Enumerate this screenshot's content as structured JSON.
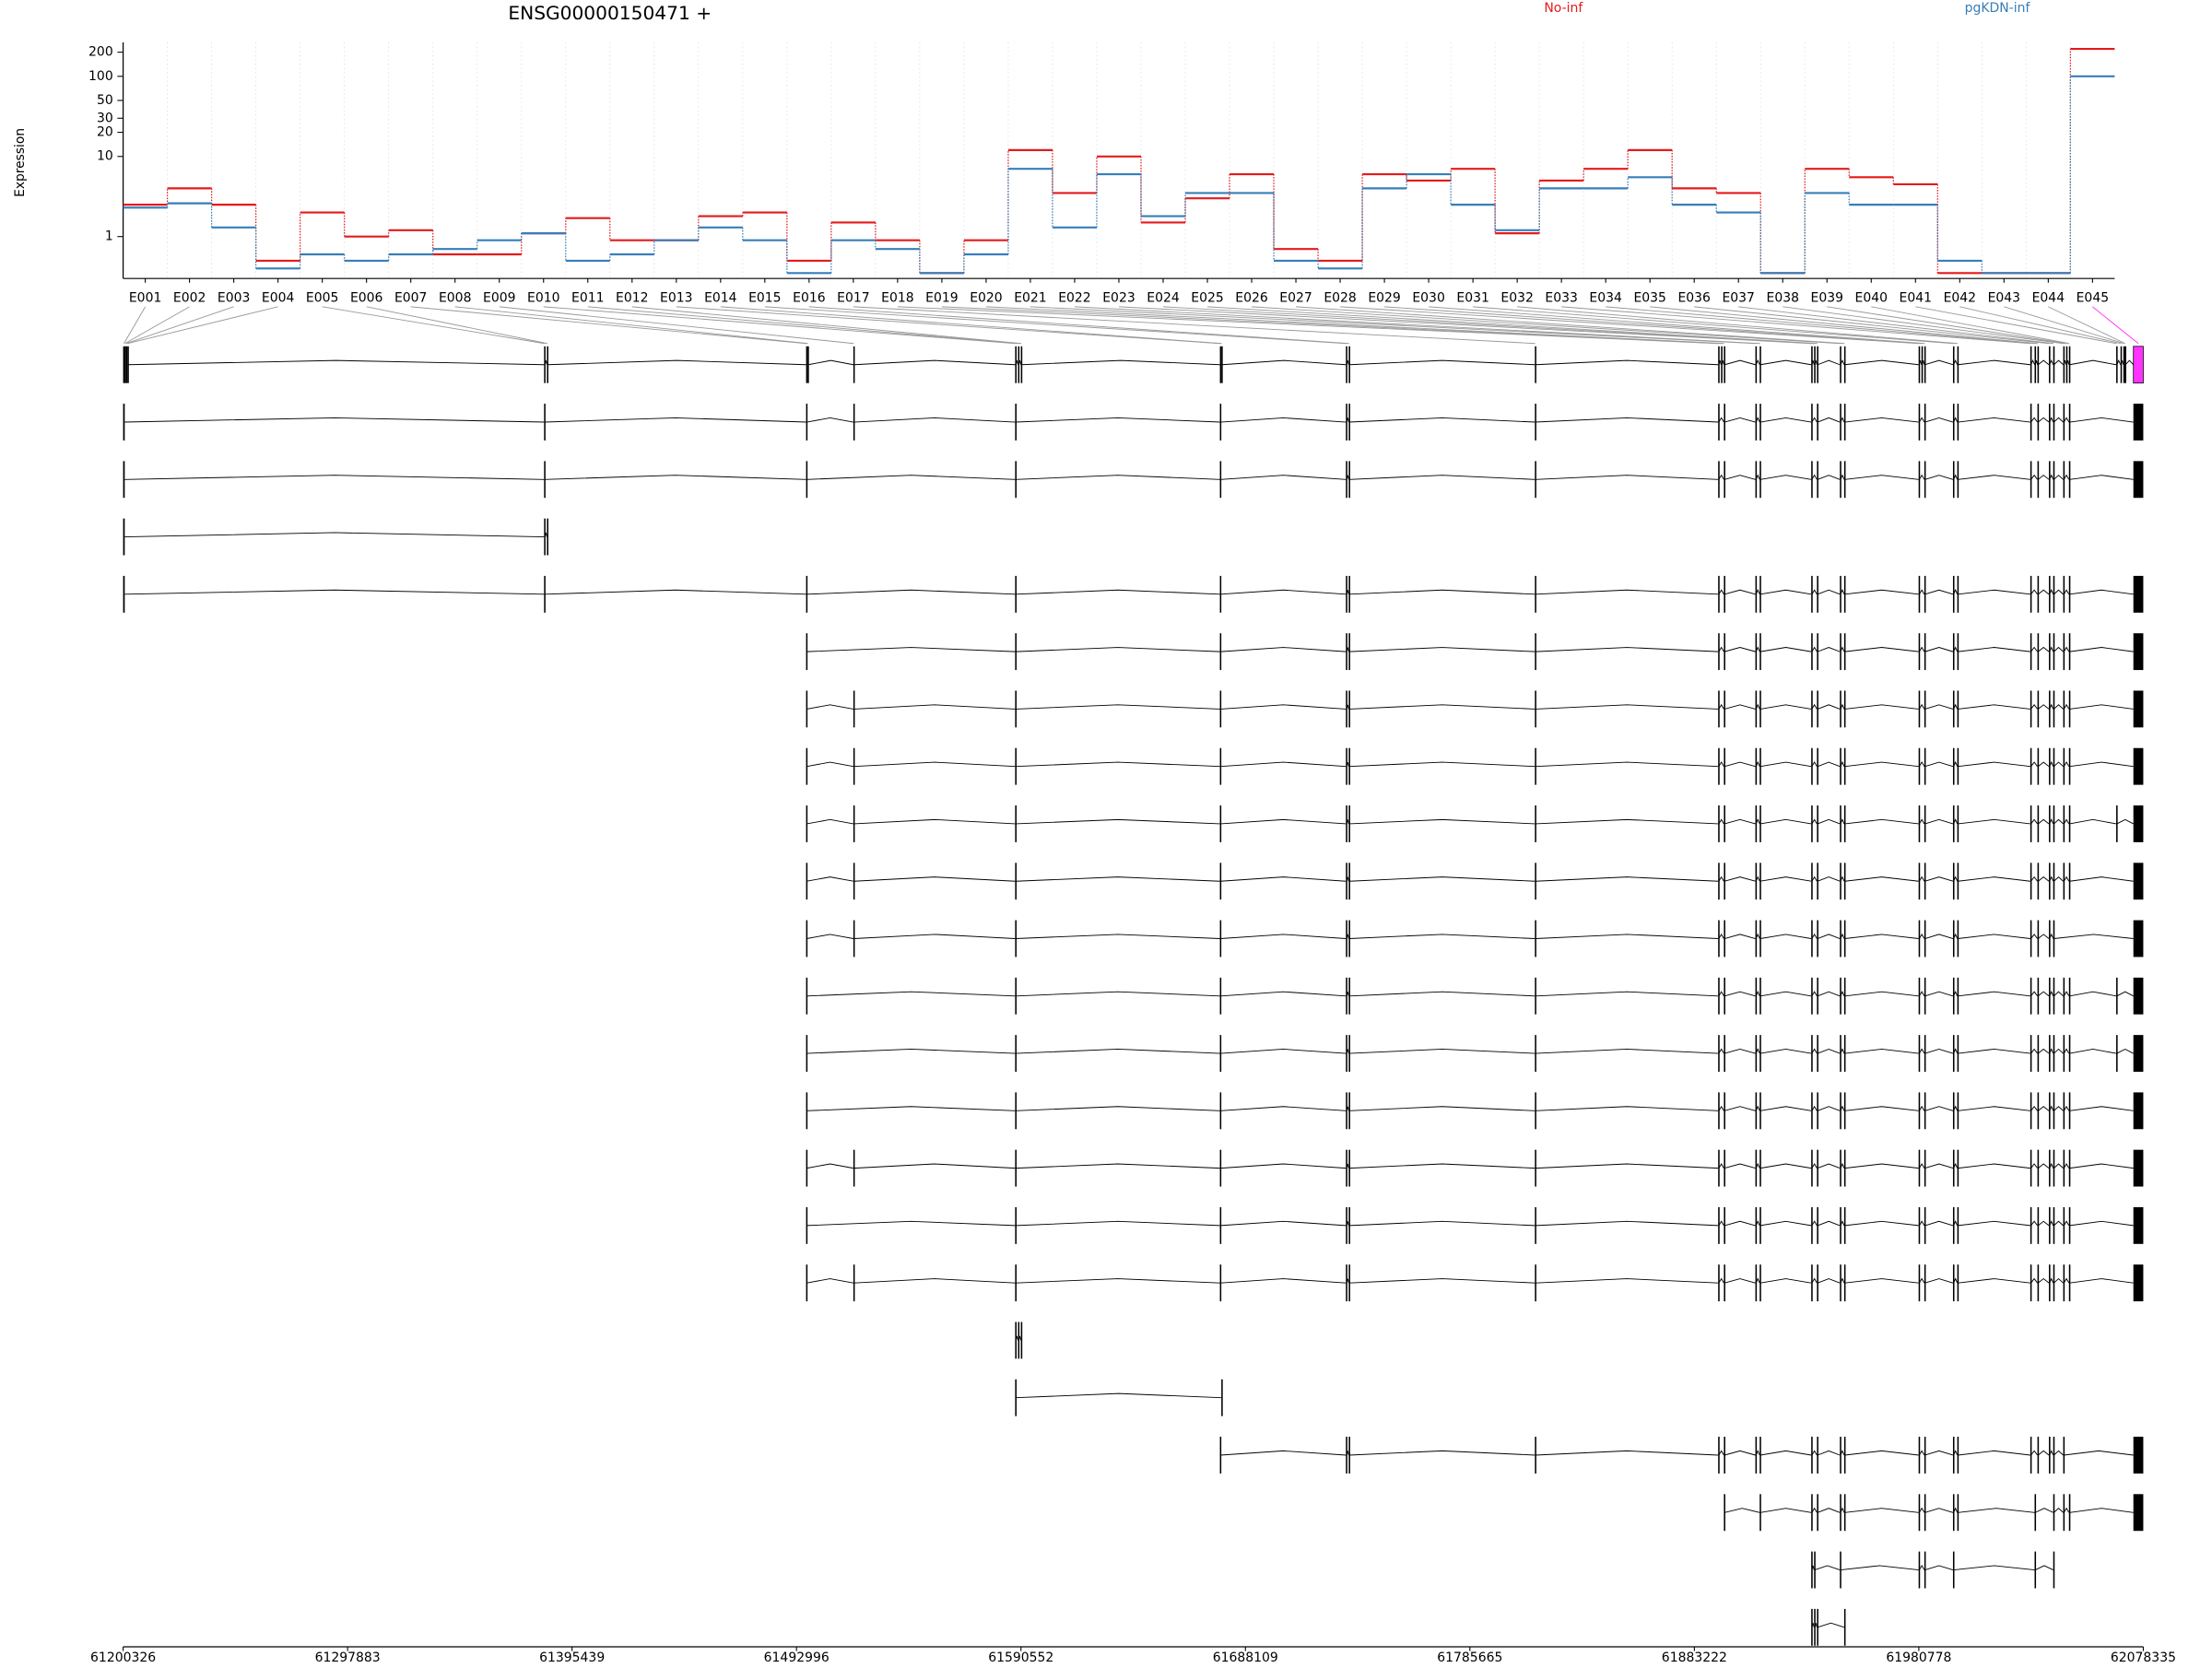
{
  "chart_data": {
    "type": "step",
    "title": "ENSG00000150471 +",
    "y_label": "Expression",
    "log_y": true,
    "grid": true,
    "ylim": [
      0.3,
      265
    ],
    "yticks": [
      1,
      10,
      20,
      30,
      50,
      100,
      200
    ],
    "categories": [
      "E001",
      "E002",
      "E003",
      "E004",
      "E005",
      "E006",
      "E007",
      "E008",
      "E009",
      "E010",
      "E011",
      "E012",
      "E013",
      "E014",
      "E015",
      "E016",
      "E017",
      "E018",
      "E019",
      "E020",
      "E021",
      "E022",
      "E023",
      "E024",
      "E025",
      "E026",
      "E027",
      "E028",
      "E029",
      "E030",
      "E031",
      "E032",
      "E033",
      "E034",
      "E035",
      "E036",
      "E037",
      "E038",
      "E039",
      "E040",
      "E041",
      "E042",
      "E043",
      "E044",
      "E045"
    ],
    "series": [
      {
        "name": "No-inf",
        "color": "#e41a1c",
        "values": [
          2.5,
          4,
          2.5,
          0.5,
          2,
          1,
          1.2,
          0.6,
          0.6,
          1.1,
          1.7,
          0.9,
          0.9,
          1.8,
          2,
          0.5,
          1.5,
          0.9,
          0.35,
          0.9,
          12,
          3.5,
          10,
          1.5,
          3,
          6,
          0.7,
          0.5,
          6,
          5,
          7,
          1.1,
          5,
          7,
          12,
          4,
          3.5,
          0.35,
          7,
          5.5,
          4.5,
          0.35,
          0.35,
          0.35,
          220
        ]
      },
      {
        "name": "pgKDN-inf",
        "color": "#377eb8",
        "values": [
          2.3,
          2.6,
          1.3,
          0.4,
          0.6,
          0.5,
          0.6,
          0.7,
          0.9,
          1.1,
          0.5,
          0.6,
          0.9,
          1.3,
          0.9,
          0.35,
          0.9,
          0.7,
          0.35,
          0.6,
          7,
          1.3,
          6,
          1.8,
          3.5,
          3.5,
          0.5,
          0.4,
          4,
          6,
          2.5,
          1.2,
          4,
          4,
          5.5,
          2.5,
          2,
          0.35,
          3.5,
          2.5,
          2.5,
          0.5,
          0.35,
          0.35,
          100
        ]
      }
    ],
    "highlight": {
      "exon": "E045",
      "color": "#ff33ff"
    },
    "exon_starts": [
      61200326,
      61200948,
      61201571,
      61202193,
      61383282,
      61384527,
      61497163,
      61497785,
      61517699,
      61588019,
      61589264,
      61590508,
      61677008,
      61677630,
      61731770,
      61733015,
      61813914,
      61893568,
      61894813,
      61896057,
      61909748,
      61911615,
      61934017,
      61935262,
      61936507,
      61946464,
      61948331,
      61980690,
      61981935,
      61983179,
      61995625,
      61997492,
      62029229,
      62031096,
      62032340,
      62037319,
      62039186,
      62043542,
      62044786,
      62046031,
      62066567,
      62068434,
      62069679,
      62070301,
      62074035
    ],
    "exon_ends": [
      61201026,
      61201248,
      61201871,
      61202493,
      61383582,
      61384827,
      61497463,
      61498085,
      61517999,
      61588319,
      61589564,
      61590808,
      61677308,
      61677930,
      61732070,
      61733315,
      61814214,
      61893868,
      61895113,
      61896357,
      61910048,
      61911915,
      61934317,
      61935562,
      61936807,
      61946764,
      61948631,
      61980990,
      61982235,
      61983479,
      61995925,
      61997792,
      62029529,
      62031396,
      62032640,
      62037619,
      62039486,
      62043842,
      62045086,
      62046331,
      62066867,
      62068734,
      62069979,
      62070601,
      62078335
    ],
    "genome_xlim": [
      61200326,
      62078335
    ],
    "genome_xticks": [
      61200326,
      61297883,
      61395439,
      61492996,
      61590552,
      61688109,
      61785665,
      61883222,
      61980778,
      62078335
    ],
    "transcripts": [
      [
        0,
        1,
        2,
        3,
        4,
        5,
        6,
        7,
        8,
        9,
        10,
        11,
        12,
        13,
        14,
        15,
        16,
        17,
        18,
        19,
        20,
        21,
        22,
        23,
        24,
        25,
        26,
        27,
        28,
        29,
        30,
        31,
        32,
        33,
        34,
        35,
        36,
        37,
        38,
        39,
        40,
        41,
        42,
        43,
        44
      ],
      [
        0,
        4,
        6,
        8,
        9,
        12,
        14,
        15,
        16,
        17,
        19,
        20,
        21,
        22,
        24,
        25,
        26,
        27,
        29,
        30,
        31,
        32,
        34,
        35,
        36,
        37,
        39,
        44
      ],
      [
        0,
        4,
        6,
        9,
        12,
        14,
        15,
        16,
        17,
        19,
        20,
        21,
        22,
        24,
        25,
        26,
        27,
        29,
        30,
        31,
        32,
        34,
        35,
        36,
        37,
        39,
        44
      ],
      [
        0,
        4,
        5
      ],
      [
        0,
        4,
        6,
        9,
        12,
        14,
        15,
        16,
        17,
        19,
        20,
        21,
        22,
        24,
        25,
        26,
        27,
        29,
        30,
        31,
        32,
        34,
        35,
        36,
        37,
        39,
        44
      ],
      [
        6,
        9,
        12,
        14,
        15,
        16,
        17,
        19,
        20,
        21,
        22,
        24,
        25,
        26,
        27,
        29,
        30,
        31,
        32,
        34,
        35,
        36,
        37,
        39,
        44
      ],
      [
        6,
        8,
        9,
        12,
        14,
        15,
        16,
        17,
        19,
        20,
        21,
        22,
        24,
        25,
        26,
        27,
        29,
        30,
        31,
        32,
        34,
        35,
        36,
        37,
        39,
        44
      ],
      [
        6,
        8,
        9,
        12,
        14,
        15,
        16,
        17,
        19,
        20,
        21,
        22,
        24,
        25,
        26,
        27,
        29,
        30,
        31,
        32,
        34,
        35,
        36,
        37,
        39,
        44
      ],
      [
        6,
        8,
        9,
        12,
        14,
        15,
        16,
        17,
        19,
        20,
        21,
        22,
        24,
        25,
        26,
        27,
        29,
        30,
        31,
        32,
        34,
        35,
        36,
        37,
        39,
        40,
        44
      ],
      [
        6,
        8,
        9,
        12,
        14,
        15,
        16,
        17,
        19,
        20,
        21,
        22,
        24,
        25,
        26,
        27,
        29,
        30,
        31,
        32,
        34,
        35,
        36,
        37,
        39,
        44
      ],
      [
        6,
        8,
        9,
        12,
        14,
        15,
        16,
        17,
        19,
        20,
        21,
        22,
        24,
        25,
        26,
        27,
        29,
        30,
        31,
        32,
        34,
        35,
        36,
        44
      ],
      [
        6,
        9,
        12,
        14,
        15,
        16,
        17,
        19,
        20,
        21,
        22,
        24,
        25,
        26,
        27,
        29,
        30,
        31,
        32,
        34,
        35,
        36,
        37,
        39,
        40,
        44
      ],
      [
        6,
        9,
        12,
        14,
        15,
        16,
        17,
        19,
        20,
        21,
        22,
        24,
        25,
        26,
        27,
        29,
        30,
        31,
        32,
        34,
        35,
        36,
        37,
        39,
        40,
        44
      ],
      [
        6,
        9,
        12,
        14,
        15,
        16,
        17,
        19,
        20,
        21,
        22,
        24,
        25,
        26,
        27,
        29,
        30,
        31,
        32,
        34,
        35,
        36,
        37,
        39,
        44
      ],
      [
        6,
        8,
        9,
        12,
        14,
        15,
        16,
        17,
        19,
        20,
        21,
        22,
        24,
        25,
        26,
        27,
        29,
        30,
        31,
        32,
        34,
        35,
        36,
        37,
        39,
        44
      ],
      [
        6,
        9,
        12,
        14,
        15,
        16,
        17,
        19,
        20,
        21,
        22,
        24,
        25,
        26,
        27,
        29,
        30,
        31,
        32,
        34,
        35,
        36,
        37,
        39,
        44
      ],
      [
        6,
        8,
        9,
        12,
        14,
        15,
        16,
        17,
        19,
        20,
        21,
        22,
        24,
        25,
        26,
        27,
        29,
        30,
        31,
        32,
        34,
        35,
        36,
        37,
        39,
        44
      ],
      [
        9,
        10,
        11
      ],
      [
        9,
        13
      ],
      [
        12,
        14,
        15,
        16,
        17,
        19,
        20,
        21,
        22,
        24,
        25,
        26,
        27,
        29,
        30,
        31,
        32,
        34,
        35,
        36,
        37,
        44
      ],
      [
        19,
        21,
        22,
        24,
        25,
        26,
        27,
        29,
        30,
        31,
        33,
        36,
        37,
        39,
        44
      ],
      [
        22,
        23,
        25,
        27,
        29,
        30,
        33,
        36
      ],
      [
        22,
        23,
        24,
        26
      ]
    ]
  }
}
